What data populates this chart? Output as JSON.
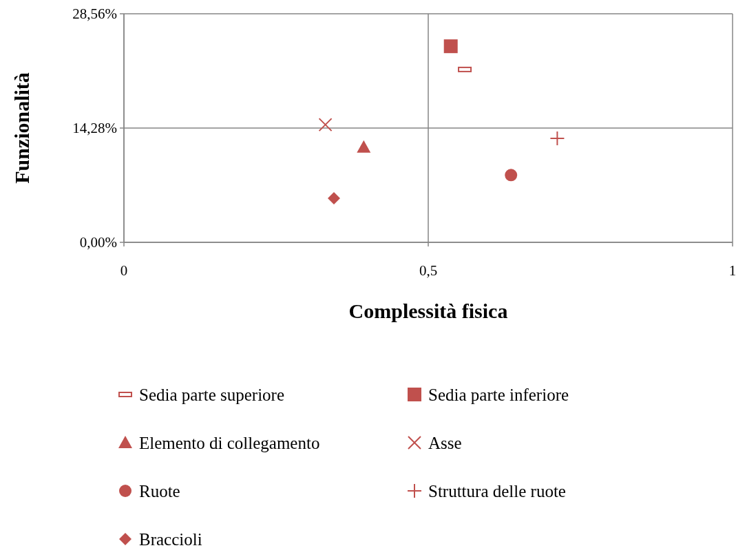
{
  "chart_data": {
    "type": "scatter",
    "xlabel": "Complessità fisica",
    "ylabel": "Funzionalità",
    "xlim": [
      0,
      1
    ],
    "ylim": [
      0,
      28.56
    ],
    "xticks": [
      0,
      {
        "value": 0.5,
        "label": "0,5"
      },
      1
    ],
    "yticks": [
      {
        "value": 0,
        "label": "0,00%"
      },
      {
        "value": 14.28,
        "label": "14,28%"
      },
      {
        "value": 28.56,
        "label": "28,56%"
      }
    ],
    "grid": true,
    "legend": "bottom",
    "series": [
      {
        "name": "Sedia parte superiore",
        "color": "#c0504d",
        "x": [
          0.56
        ],
        "values": [
          21.6
        ]
      },
      {
        "name": "Sedia parte inferiore",
        "color": "#c0504d",
        "marker": "square",
        "x": [
          0.537
        ],
        "values": [
          24.5
        ]
      },
      {
        "name": "Elemento di collegamento",
        "color": "#c0504d",
        "marker": "triangle",
        "x": [
          0.394
        ],
        "values": [
          11.9
        ]
      },
      {
        "name": "Asse",
        "color": "#c0504d",
        "marker": "cross",
        "x": [
          0.331
        ],
        "values": [
          14.7
        ]
      },
      {
        "name": "Ruote",
        "color": "#c0504d",
        "marker": "circle",
        "x": [
          0.636
        ],
        "values": [
          8.4
        ]
      },
      {
        "name": "Struttura delle ruote",
        "color": "#c0504d",
        "marker": "plus",
        "x": [
          0.712
        ],
        "values": [
          13.0
        ]
      },
      {
        "name": "Braccioli",
        "color": "#c0504d",
        "marker": "diamond",
        "x": [
          0.345
        ],
        "values": [
          5.5
        ]
      }
    ]
  }
}
